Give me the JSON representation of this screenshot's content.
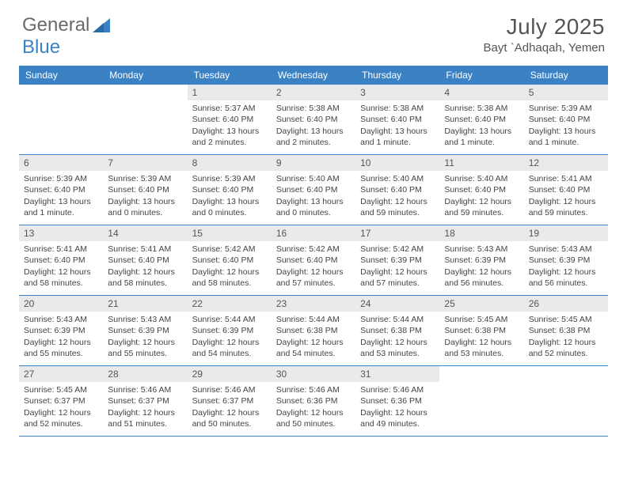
{
  "brand": {
    "name_part1": "General",
    "name_part2": "Blue",
    "logo_color": "#3b82c4",
    "text_color": "#6a6a6a"
  },
  "title": {
    "month": "July 2025",
    "location": "Bayt `Adhaqah, Yemen",
    "title_fontsize": 28,
    "location_fontsize": 15,
    "color": "#555555"
  },
  "colors": {
    "header_bg": "#3b82c4",
    "header_text": "#ffffff",
    "daynum_bg": "#eaeaea",
    "border": "#3b82c4",
    "body_text": "#444444"
  },
  "dayNames": [
    "Sunday",
    "Monday",
    "Tuesday",
    "Wednesday",
    "Thursday",
    "Friday",
    "Saturday"
  ],
  "weeks": [
    [
      {
        "n": "",
        "sunrise": "",
        "sunset": "",
        "daylight": ""
      },
      {
        "n": "",
        "sunrise": "",
        "sunset": "",
        "daylight": ""
      },
      {
        "n": "1",
        "sunrise": "Sunrise: 5:37 AM",
        "sunset": "Sunset: 6:40 PM",
        "daylight": "Daylight: 13 hours and 2 minutes."
      },
      {
        "n": "2",
        "sunrise": "Sunrise: 5:38 AM",
        "sunset": "Sunset: 6:40 PM",
        "daylight": "Daylight: 13 hours and 2 minutes."
      },
      {
        "n": "3",
        "sunrise": "Sunrise: 5:38 AM",
        "sunset": "Sunset: 6:40 PM",
        "daylight": "Daylight: 13 hours and 1 minute."
      },
      {
        "n": "4",
        "sunrise": "Sunrise: 5:38 AM",
        "sunset": "Sunset: 6:40 PM",
        "daylight": "Daylight: 13 hours and 1 minute."
      },
      {
        "n": "5",
        "sunrise": "Sunrise: 5:39 AM",
        "sunset": "Sunset: 6:40 PM",
        "daylight": "Daylight: 13 hours and 1 minute."
      }
    ],
    [
      {
        "n": "6",
        "sunrise": "Sunrise: 5:39 AM",
        "sunset": "Sunset: 6:40 PM",
        "daylight": "Daylight: 13 hours and 1 minute."
      },
      {
        "n": "7",
        "sunrise": "Sunrise: 5:39 AM",
        "sunset": "Sunset: 6:40 PM",
        "daylight": "Daylight: 13 hours and 0 minutes."
      },
      {
        "n": "8",
        "sunrise": "Sunrise: 5:39 AM",
        "sunset": "Sunset: 6:40 PM",
        "daylight": "Daylight: 13 hours and 0 minutes."
      },
      {
        "n": "9",
        "sunrise": "Sunrise: 5:40 AM",
        "sunset": "Sunset: 6:40 PM",
        "daylight": "Daylight: 13 hours and 0 minutes."
      },
      {
        "n": "10",
        "sunrise": "Sunrise: 5:40 AM",
        "sunset": "Sunset: 6:40 PM",
        "daylight": "Daylight: 12 hours and 59 minutes."
      },
      {
        "n": "11",
        "sunrise": "Sunrise: 5:40 AM",
        "sunset": "Sunset: 6:40 PM",
        "daylight": "Daylight: 12 hours and 59 minutes."
      },
      {
        "n": "12",
        "sunrise": "Sunrise: 5:41 AM",
        "sunset": "Sunset: 6:40 PM",
        "daylight": "Daylight: 12 hours and 59 minutes."
      }
    ],
    [
      {
        "n": "13",
        "sunrise": "Sunrise: 5:41 AM",
        "sunset": "Sunset: 6:40 PM",
        "daylight": "Daylight: 12 hours and 58 minutes."
      },
      {
        "n": "14",
        "sunrise": "Sunrise: 5:41 AM",
        "sunset": "Sunset: 6:40 PM",
        "daylight": "Daylight: 12 hours and 58 minutes."
      },
      {
        "n": "15",
        "sunrise": "Sunrise: 5:42 AM",
        "sunset": "Sunset: 6:40 PM",
        "daylight": "Daylight: 12 hours and 58 minutes."
      },
      {
        "n": "16",
        "sunrise": "Sunrise: 5:42 AM",
        "sunset": "Sunset: 6:40 PM",
        "daylight": "Daylight: 12 hours and 57 minutes."
      },
      {
        "n": "17",
        "sunrise": "Sunrise: 5:42 AM",
        "sunset": "Sunset: 6:39 PM",
        "daylight": "Daylight: 12 hours and 57 minutes."
      },
      {
        "n": "18",
        "sunrise": "Sunrise: 5:43 AM",
        "sunset": "Sunset: 6:39 PM",
        "daylight": "Daylight: 12 hours and 56 minutes."
      },
      {
        "n": "19",
        "sunrise": "Sunrise: 5:43 AM",
        "sunset": "Sunset: 6:39 PM",
        "daylight": "Daylight: 12 hours and 56 minutes."
      }
    ],
    [
      {
        "n": "20",
        "sunrise": "Sunrise: 5:43 AM",
        "sunset": "Sunset: 6:39 PM",
        "daylight": "Daylight: 12 hours and 55 minutes."
      },
      {
        "n": "21",
        "sunrise": "Sunrise: 5:43 AM",
        "sunset": "Sunset: 6:39 PM",
        "daylight": "Daylight: 12 hours and 55 minutes."
      },
      {
        "n": "22",
        "sunrise": "Sunrise: 5:44 AM",
        "sunset": "Sunset: 6:39 PM",
        "daylight": "Daylight: 12 hours and 54 minutes."
      },
      {
        "n": "23",
        "sunrise": "Sunrise: 5:44 AM",
        "sunset": "Sunset: 6:38 PM",
        "daylight": "Daylight: 12 hours and 54 minutes."
      },
      {
        "n": "24",
        "sunrise": "Sunrise: 5:44 AM",
        "sunset": "Sunset: 6:38 PM",
        "daylight": "Daylight: 12 hours and 53 minutes."
      },
      {
        "n": "25",
        "sunrise": "Sunrise: 5:45 AM",
        "sunset": "Sunset: 6:38 PM",
        "daylight": "Daylight: 12 hours and 53 minutes."
      },
      {
        "n": "26",
        "sunrise": "Sunrise: 5:45 AM",
        "sunset": "Sunset: 6:38 PM",
        "daylight": "Daylight: 12 hours and 52 minutes."
      }
    ],
    [
      {
        "n": "27",
        "sunrise": "Sunrise: 5:45 AM",
        "sunset": "Sunset: 6:37 PM",
        "daylight": "Daylight: 12 hours and 52 minutes."
      },
      {
        "n": "28",
        "sunrise": "Sunrise: 5:46 AM",
        "sunset": "Sunset: 6:37 PM",
        "daylight": "Daylight: 12 hours and 51 minutes."
      },
      {
        "n": "29",
        "sunrise": "Sunrise: 5:46 AM",
        "sunset": "Sunset: 6:37 PM",
        "daylight": "Daylight: 12 hours and 50 minutes."
      },
      {
        "n": "30",
        "sunrise": "Sunrise: 5:46 AM",
        "sunset": "Sunset: 6:36 PM",
        "daylight": "Daylight: 12 hours and 50 minutes."
      },
      {
        "n": "31",
        "sunrise": "Sunrise: 5:46 AM",
        "sunset": "Sunset: 6:36 PM",
        "daylight": "Daylight: 12 hours and 49 minutes."
      },
      {
        "n": "",
        "sunrise": "",
        "sunset": "",
        "daylight": ""
      },
      {
        "n": "",
        "sunrise": "",
        "sunset": "",
        "daylight": ""
      }
    ]
  ]
}
